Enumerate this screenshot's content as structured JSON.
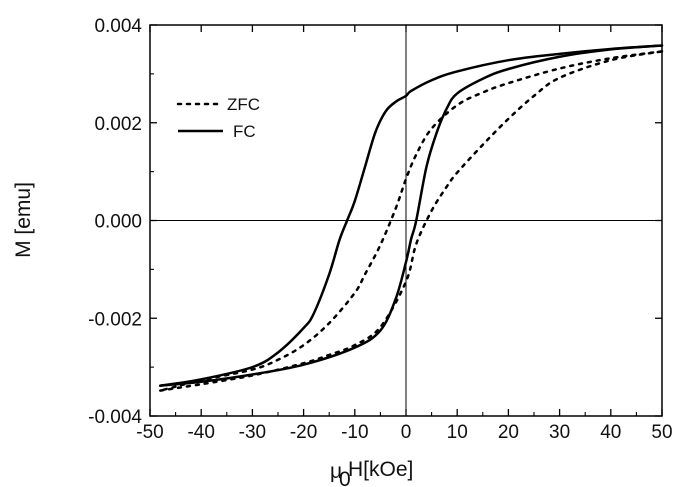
{
  "chart_data": {
    "type": "line",
    "xlabel": "μ₀H[kOe]",
    "xlabel_parts": {
      "mu": "μ",
      "sub": "0",
      "rest": "H[kOe]"
    },
    "ylabel": "M [emu]",
    "xlim": [
      -50,
      50
    ],
    "ylim": [
      -0.004,
      0.004
    ],
    "x_ticks": [
      -50,
      -40,
      -30,
      -20,
      -10,
      0,
      10,
      20,
      30,
      40,
      50
    ],
    "x_tick_labels": [
      "-50",
      "-40",
      "-30",
      "-20",
      "-10",
      "0",
      "10",
      "20",
      "30",
      "40",
      "50"
    ],
    "y_ticks": [
      -0.004,
      -0.002,
      0.0,
      0.002,
      0.004
    ],
    "y_tick_labels": [
      "-0.004",
      "-0.002",
      "0.000",
      "0.002",
      "0.004"
    ],
    "zero_lines": true,
    "grid": false,
    "legend_position": "top-left",
    "series": [
      {
        "name": "ZFC",
        "style": "dotted",
        "color": "#000000",
        "branches": [
          {
            "x": [
              50,
              40,
              30,
              20,
              15,
              10,
              5,
              2,
              0,
              -2,
              -5,
              -8,
              -10,
              -15,
              -20,
              -25,
              -30,
              -40,
              -48
            ],
            "y": [
              0.00346,
              0.00332,
              0.00311,
              0.00281,
              0.00262,
              0.00236,
              0.00188,
              0.00135,
              0.00085,
              0.00025,
              -0.0005,
              -0.0011,
              -0.00148,
              -0.0021,
              -0.00255,
              -0.00285,
              -0.00305,
              -0.00327,
              -0.00348
            ]
          },
          {
            "x": [
              -48,
              -40,
              -30,
              -20,
              -15,
              -10,
              -5,
              0,
              2,
              5,
              8,
              10,
              15,
              20,
              25,
              30,
              40,
              50
            ],
            "y": [
              -0.00348,
              -0.00335,
              -0.00317,
              -0.00292,
              -0.00275,
              -0.00255,
              -0.00218,
              -0.00125,
              -0.00048,
              0.0002,
              0.0007,
              0.00098,
              0.00155,
              0.00208,
              0.00255,
              0.00292,
              0.00328,
              0.00346
            ]
          }
        ]
      },
      {
        "name": "FC",
        "style": "solid",
        "color": "#000000",
        "branches": [
          {
            "x": [
              50,
              40,
              30,
              20,
              10,
              5,
              1,
              0,
              -2,
              -4,
              -6,
              -8,
              -10,
              -11.5,
              -13,
              -15,
              -18,
              -20,
              -25,
              -30,
              -40,
              -48
            ],
            "y": [
              0.00358,
              0.00351,
              0.00341,
              0.00328,
              0.00305,
              0.00287,
              0.00265,
              0.00255,
              0.00243,
              0.00223,
              0.0018,
              0.0011,
              0.0004,
              0.0,
              -0.0004,
              -0.0011,
              -0.0019,
              -0.0022,
              -0.0027,
              -0.003,
              -0.00325,
              -0.00338
            ]
          },
          {
            "x": [
              -48,
              -40,
              -30,
              -20,
              -10,
              -5,
              -2,
              0,
              1,
              2,
              4,
              6,
              8,
              10,
              15,
              20,
              30,
              40,
              50
            ],
            "y": [
              -0.00338,
              -0.0033,
              -0.00315,
              -0.00295,
              -0.0026,
              -0.00225,
              -0.0016,
              -0.00085,
              -0.00038,
              0.0,
              0.0011,
              0.0018,
              0.0023,
              0.0026,
              0.0029,
              0.0031,
              0.00335,
              0.0035,
              0.00358
            ]
          }
        ]
      }
    ]
  }
}
